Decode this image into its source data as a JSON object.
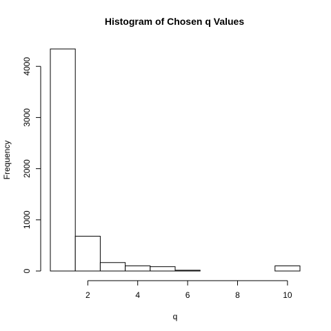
{
  "chart_data": {
    "type": "bar",
    "title": "Histogram of Chosen q Values",
    "xlabel": "q",
    "ylabel": "Frequency",
    "bins": [
      {
        "start": 0.5,
        "end": 1.5,
        "count": 4340
      },
      {
        "start": 1.5,
        "end": 2.5,
        "count": 680
      },
      {
        "start": 2.5,
        "end": 3.5,
        "count": 165
      },
      {
        "start": 3.5,
        "end": 4.5,
        "count": 100
      },
      {
        "start": 4.5,
        "end": 5.5,
        "count": 85
      },
      {
        "start": 5.5,
        "end": 6.5,
        "count": 15
      },
      {
        "start": 6.5,
        "end": 7.5,
        "count": 0
      },
      {
        "start": 7.5,
        "end": 8.5,
        "count": 0
      },
      {
        "start": 8.5,
        "end": 9.5,
        "count": 0
      },
      {
        "start": 9.5,
        "end": 10.5,
        "count": 100
      }
    ],
    "x_ticks": [
      2,
      4,
      6,
      8,
      10
    ],
    "y_ticks": [
      0,
      1000,
      2000,
      3000,
      4000
    ],
    "xlim": [
      0.5,
      10.5
    ],
    "ylim": [
      0,
      4340
    ],
    "grid": false,
    "legend": "none",
    "colors": {
      "bar_fill": "#ffffff",
      "bar_stroke": "#000000"
    }
  }
}
